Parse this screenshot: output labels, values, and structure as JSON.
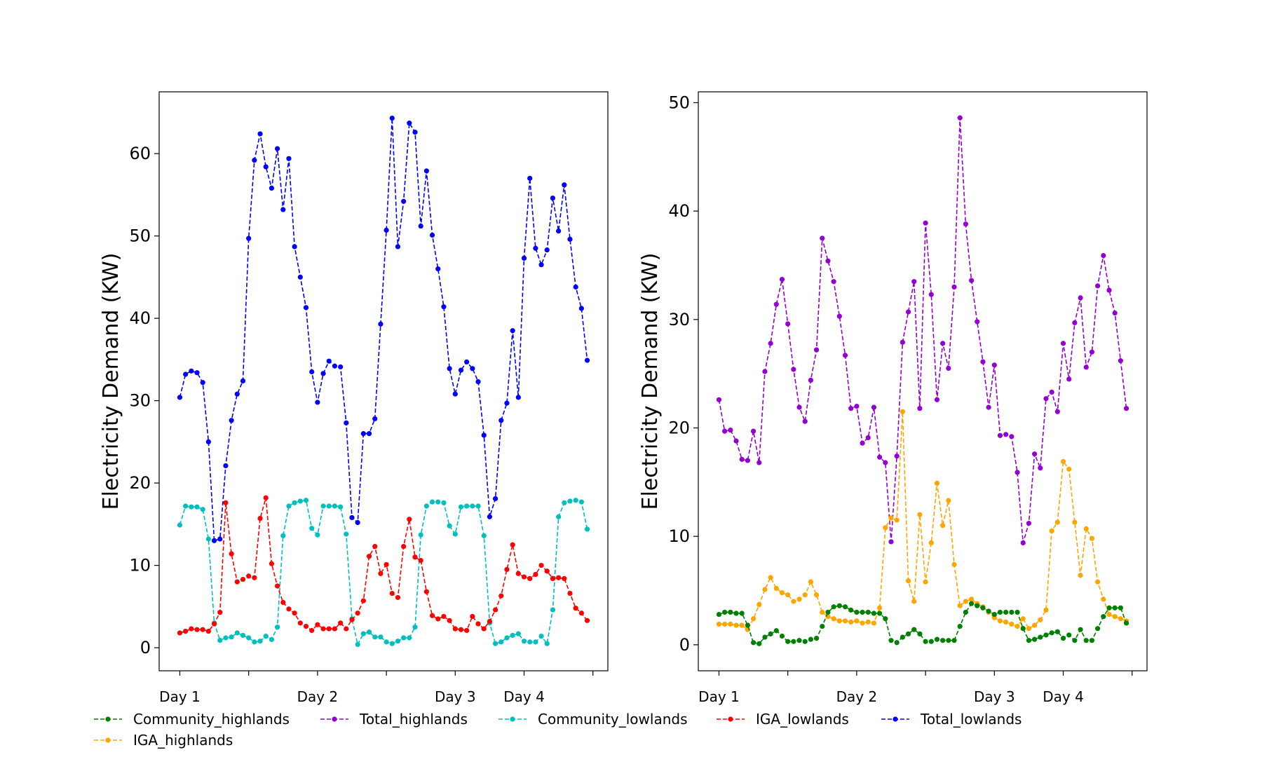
{
  "chart_data": [
    {
      "type": "line",
      "ylabel": "Electricity Demand (KW)",
      "xlabel": "",
      "ylim": [
        -2.8,
        67.5
      ],
      "yticks": [
        0,
        10,
        20,
        30,
        40,
        50,
        60
      ],
      "xtick_labels": [
        {
          "x": 0,
          "label": "Day 1"
        },
        {
          "x": 24,
          "label": "Day 2"
        },
        {
          "x": 48,
          "label": "Day 3"
        },
        {
          "x": 60,
          "label": "Day 4"
        }
      ],
      "xtick_marks": [
        0,
        12,
        24,
        36,
        48,
        60,
        72
      ],
      "xlim": [
        -3.6,
        74.6
      ],
      "series": [
        {
          "name": "Total_lowlands",
          "color": "#0000ff",
          "values": [
            30.4,
            33.2,
            33.6,
            33.4,
            32.2,
            25.0,
            13.0,
            13.2,
            22.1,
            27.6,
            30.8,
            32.4,
            49.7,
            59.2,
            62.4,
            58.4,
            55.8,
            60.6,
            53.2,
            59.4,
            48.7,
            45.0,
            41.3,
            33.5,
            29.8,
            33.3,
            34.8,
            34.2,
            34.1,
            27.3,
            15.8,
            15.2,
            26.0,
            26.0,
            27.8,
            39.3,
            50.7,
            64.3,
            48.7,
            54.2,
            63.7,
            62.6,
            51.2,
            57.9,
            50.1,
            46.0,
            41.4,
            33.9,
            30.8,
            33.7,
            34.7,
            33.9,
            32.3,
            25.8,
            15.9,
            18.1,
            27.6,
            29.7,
            38.5,
            30.4,
            47.3,
            57.0,
            48.5,
            46.5,
            48.3,
            54.6,
            50.6,
            56.2,
            49.6,
            43.8,
            41.2,
            34.9
          ]
        },
        {
          "name": "Community_lowlands",
          "color": "#00bfbf",
          "values": [
            14.9,
            17.2,
            17.1,
            17.1,
            16.8,
            13.2,
            3.0,
            0.9,
            1.2,
            1.3,
            1.8,
            1.5,
            1.2,
            0.7,
            0.8,
            1.4,
            1.0,
            2.5,
            13.6,
            17.2,
            17.6,
            17.8,
            17.9,
            14.5,
            13.7,
            17.2,
            17.2,
            17.2,
            17.1,
            13.8,
            3.5,
            0.4,
            1.7,
            1.9,
            1.3,
            1.3,
            0.7,
            0.5,
            0.8,
            1.2,
            1.2,
            2.5,
            13.7,
            17.2,
            17.7,
            17.7,
            17.6,
            14.8,
            13.8,
            17.1,
            17.2,
            17.2,
            17.2,
            13.6,
            3.0,
            0.5,
            0.7,
            1.2,
            1.5,
            1.7,
            0.8,
            0.7,
            0.7,
            1.4,
            0.5,
            4.6,
            15.9,
            17.6,
            17.8,
            17.9,
            17.7,
            14.4
          ]
        },
        {
          "name": "IGA_lowlands",
          "color": "#ff0000",
          "values": [
            1.8,
            2.0,
            2.3,
            2.2,
            2.2,
            2.0,
            2.9,
            4.3,
            17.6,
            11.4,
            8.0,
            8.3,
            8.7,
            8.5,
            15.7,
            18.2,
            10.2,
            7.5,
            5.5,
            4.7,
            4.2,
            3.0,
            2.6,
            2.1,
            2.8,
            2.3,
            2.3,
            2.3,
            3.0,
            2.3,
            3.4,
            4.2,
            5.7,
            11.1,
            12.3,
            9.0,
            10.1,
            6.6,
            6.1,
            12.3,
            15.6,
            11.0,
            10.6,
            6.8,
            3.9,
            3.5,
            3.8,
            3.3,
            2.3,
            2.2,
            2.1,
            3.8,
            2.9,
            2.3,
            3.2,
            4.6,
            6.3,
            9.5,
            12.5,
            9.0,
            8.6,
            8.4,
            8.9,
            10.0,
            9.3,
            8.4,
            8.5,
            8.4,
            6.6,
            4.8,
            4.2,
            3.3
          ]
        }
      ]
    },
    {
      "type": "line",
      "ylabel": "Electricity Demand (KW)",
      "xlabel": "",
      "ylim": [
        -2.4,
        51.0
      ],
      "yticks": [
        0,
        10,
        20,
        30,
        40,
        50
      ],
      "xtick_labels": [
        {
          "x": 0,
          "label": "Day 1"
        },
        {
          "x": 24,
          "label": "Day 2"
        },
        {
          "x": 48,
          "label": "Day 3"
        },
        {
          "x": 60,
          "label": "Day 4"
        }
      ],
      "xtick_marks": [
        0,
        12,
        24,
        36,
        48,
        60,
        72
      ],
      "xlim": [
        -3.6,
        74.6
      ],
      "series": [
        {
          "name": "Total_highlands",
          "color": "#9400d3",
          "values": [
            22.6,
            19.7,
            19.8,
            18.8,
            17.1,
            17.0,
            19.7,
            16.8,
            25.2,
            27.8,
            31.4,
            33.7,
            29.6,
            25.4,
            21.9,
            20.6,
            24.4,
            27.2,
            37.5,
            35.4,
            33.5,
            30.3,
            26.7,
            21.8,
            22.0,
            18.6,
            19.1,
            21.9,
            17.3,
            16.8,
            9.5,
            17.4,
            27.9,
            30.7,
            33.5,
            21.8,
            38.9,
            32.3,
            22.6,
            27.8,
            25.5,
            33.0,
            48.6,
            38.8,
            33.6,
            29.8,
            26.1,
            21.9,
            25.8,
            19.3,
            19.4,
            19.2,
            15.9,
            9.4,
            11.2,
            17.6,
            16.3,
            22.7,
            23.3,
            21.5,
            27.8,
            24.5,
            29.7,
            32.0,
            25.6,
            27.0,
            33.1,
            35.9,
            32.7,
            30.6,
            26.2,
            21.8
          ]
        },
        {
          "name": "IGA_highlands",
          "color": "#ffa500",
          "values": [
            1.9,
            1.9,
            1.9,
            1.8,
            1.8,
            1.4,
            2.4,
            3.7,
            5.1,
            6.2,
            5.2,
            4.8,
            4.6,
            4.0,
            4.2,
            4.6,
            5.8,
            4.6,
            3.0,
            2.6,
            2.4,
            2.2,
            2.2,
            2.1,
            2.2,
            2.0,
            2.1,
            2.0,
            3.4,
            10.8,
            11.7,
            11.5,
            21.5,
            5.9,
            4.0,
            12.0,
            5.8,
            9.4,
            14.9,
            11.0,
            13.3,
            7.4,
            3.6,
            4.0,
            4.2,
            3.8,
            3.5,
            3.0,
            2.5,
            2.2,
            2.1,
            1.9,
            1.7,
            2.4,
            1.5,
            1.8,
            2.3,
            3.2,
            10.5,
            11.3,
            16.9,
            16.2,
            11.3,
            6.4,
            10.7,
            9.8,
            5.8,
            4.2,
            2.8,
            2.6,
            2.4,
            2.2
          ]
        },
        {
          "name": "Community_highlands",
          "color": "#008000",
          "values": [
            2.8,
            3.0,
            3.0,
            2.9,
            2.9,
            1.8,
            0.2,
            0.1,
            0.7,
            1.0,
            1.3,
            0.8,
            0.3,
            0.3,
            0.4,
            0.3,
            0.5,
            0.6,
            1.7,
            3.0,
            3.5,
            3.6,
            3.5,
            3.2,
            3.0,
            3.0,
            3.0,
            2.9,
            2.9,
            2.4,
            0.4,
            0.2,
            0.7,
            1.0,
            1.4,
            1.0,
            0.3,
            0.3,
            0.5,
            0.4,
            0.4,
            0.4,
            1.7,
            3.0,
            3.8,
            3.6,
            3.4,
            3.1,
            2.8,
            3.0,
            3.0,
            3.0,
            3.0,
            1.5,
            0.4,
            0.5,
            0.7,
            0.9,
            1.1,
            1.2,
            0.6,
            0.9,
            0.4,
            1.4,
            0.4,
            0.4,
            1.5,
            2.6,
            3.4,
            3.4,
            3.4,
            2.0
          ]
        }
      ]
    }
  ],
  "legend": {
    "placement": "bottom",
    "entries": [
      {
        "label": "Community_highlands",
        "color": "#008000"
      },
      {
        "label": "Total_highlands",
        "color": "#9400d3"
      },
      {
        "label": "Community_lowlands",
        "color": "#00bfbf"
      },
      {
        "label": "IGA_lowlands",
        "color": "#ff0000"
      },
      {
        "label": "Total_lowlands",
        "color": "#0000ff"
      },
      {
        "label": "IGA_highlands",
        "color": "#ffa500"
      }
    ]
  }
}
